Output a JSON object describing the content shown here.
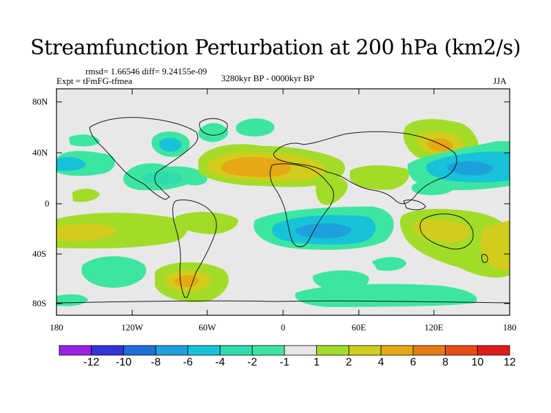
{
  "title": "Streamfunction Perturbation at 200 hPa (km2/s)",
  "stats": "rmsd= 1.66546 diff= 9.24155e-09",
  "experiment": "Expt = tFmFG-tfmea",
  "period": "3280kyr BP - 0000kyr BP",
  "season": "JJA",
  "lat_labels": [
    "80N",
    "40N",
    "0",
    "40S",
    "80S"
  ],
  "lon_labels": [
    "180",
    "120W",
    "60W",
    "0",
    "60E",
    "120E",
    "180"
  ],
  "colorbar": {
    "labels": [
      "-12",
      "-10",
      "-8",
      "-6",
      "-4",
      "-2",
      "-1",
      "1",
      "2",
      "4",
      "6",
      "8",
      "10",
      "12"
    ],
    "colors": [
      "#9a22e4",
      "#3333d9",
      "#1f6fd6",
      "#1ea0dc",
      "#17c3d9",
      "#2fdcae",
      "#3de6a0",
      "#e6e6e6",
      "#a2dc28",
      "#d2cc1c",
      "#e6a814",
      "#e67a14",
      "#e64d14",
      "#e31a1a"
    ]
  }
}
